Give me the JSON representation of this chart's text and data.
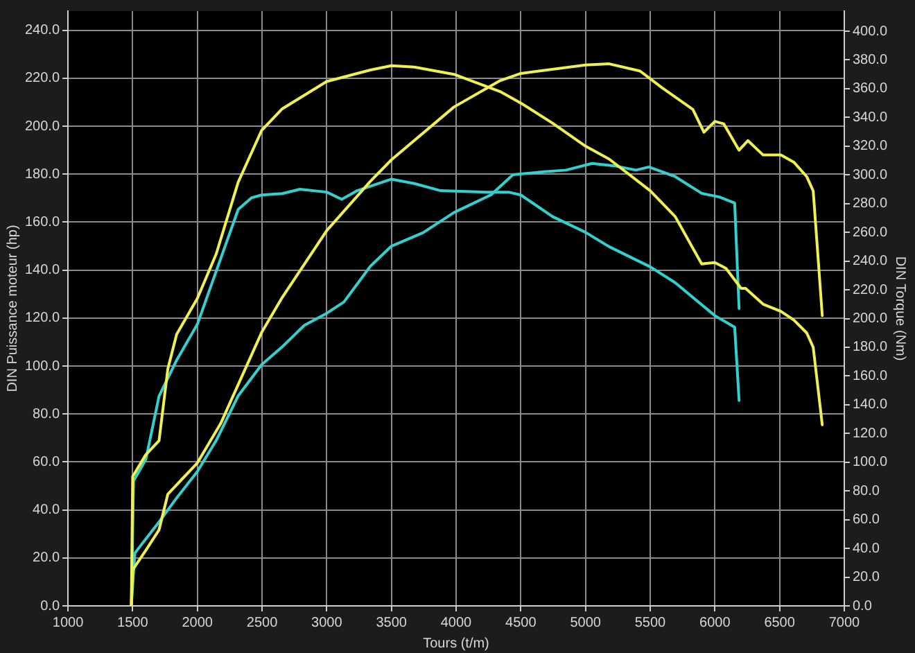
{
  "chart_data": {
    "type": "line",
    "xlabel": "Tours (t/m)",
    "ylabel": "DIN Puissance moteur (hp)",
    "y2label": "DIN Torque (Nm)",
    "xlim": [
      1000,
      7000
    ],
    "xticks": [
      1000,
      1500,
      2000,
      2500,
      3000,
      3500,
      4000,
      4500,
      5000,
      5500,
      6000,
      6500,
      7000
    ],
    "ylim": [
      0,
      248
    ],
    "yticks": [
      {
        "value": 0,
        "label": "0.0"
      },
      {
        "value": 20,
        "label": "20.0"
      },
      {
        "value": 40,
        "label": "40.0"
      },
      {
        "value": 60,
        "label": "60.0"
      },
      {
        "value": 80,
        "label": "80.0"
      },
      {
        "value": 100,
        "label": "100.0"
      },
      {
        "value": 120,
        "label": "120.0"
      },
      {
        "value": 140,
        "label": "140.0"
      },
      {
        "value": 160,
        "label": "160.0"
      },
      {
        "value": 180,
        "label": "180.0"
      },
      {
        "value": 200,
        "label": "200.0"
      },
      {
        "value": 220,
        "label": "220.0"
      },
      {
        "value": 240,
        "label": "240.0"
      }
    ],
    "y2lim": [
      0,
      414
    ],
    "y2ticks": [
      {
        "value": 0,
        "label": "0.0"
      },
      {
        "value": 20,
        "label": "20.0"
      },
      {
        "value": 40,
        "label": "40.0"
      },
      {
        "value": 60,
        "label": "60.0"
      },
      {
        "value": 80,
        "label": "80.0"
      },
      {
        "value": 100,
        "label": "100.0"
      },
      {
        "value": 120,
        "label": "120.0"
      },
      {
        "value": 140,
        "label": "140.0"
      },
      {
        "value": 160,
        "label": "160.0"
      },
      {
        "value": 180,
        "label": "180.0"
      },
      {
        "value": 200,
        "label": "200.0"
      },
      {
        "value": 220,
        "label": "220.0"
      },
      {
        "value": 240,
        "label": "240.0"
      },
      {
        "value": 260,
        "label": "260.0"
      },
      {
        "value": 280,
        "label": "280.0"
      },
      {
        "value": 300,
        "label": "300.0"
      },
      {
        "value": 320,
        "label": "320.0"
      },
      {
        "value": 340,
        "label": "340.0"
      },
      {
        "value": 360,
        "label": "360.0"
      },
      {
        "value": 380,
        "label": "380.0"
      },
      {
        "value": 400,
        "label": "400.0"
      }
    ],
    "grid": true,
    "legend": false,
    "marker": "none",
    "line_style": "solid",
    "series": [
      {
        "color": "#f0f050",
        "axis": "y2",
        "x": [
          1490,
          1500,
          1600,
          1704,
          1772,
          1840,
          2000,
          2146,
          2316,
          2497,
          2656,
          3000,
          3337,
          3500,
          3677,
          3983,
          4340,
          4500,
          4745,
          5000,
          5183,
          5500,
          5693,
          5898,
          6000,
          6085,
          6203,
          6237,
          6373,
          6510,
          6610,
          6710,
          6760,
          6830
        ],
        "values": [
          0,
          90,
          105,
          115,
          165,
          189,
          214,
          245,
          295,
          331,
          346,
          365,
          373,
          376,
          375,
          370,
          358,
          350,
          336,
          320,
          311,
          289,
          271,
          238,
          239,
          235,
          221,
          221,
          210,
          205,
          199,
          190,
          180,
          126
        ]
      },
      {
        "color": "#f0f050",
        "axis": "y",
        "x": [
          1490,
          1500,
          1600,
          1704,
          1772,
          2000,
          2180,
          2497,
          2656,
          3000,
          3337,
          3500,
          3983,
          4340,
          4500,
          5000,
          5183,
          5422,
          5592,
          5830,
          5915,
          6000,
          6068,
          6187,
          6255,
          6373,
          6510,
          6610,
          6710,
          6760,
          6830
        ],
        "values": [
          0,
          15,
          23,
          31.7,
          46.6,
          59.6,
          76,
          114,
          128.6,
          156.5,
          177,
          186,
          208,
          219,
          222,
          225.5,
          226,
          223,
          216,
          207,
          197.5,
          202,
          201,
          190,
          194,
          188,
          188,
          185,
          179,
          173,
          121
        ]
      },
      {
        "color": "#33d0d0",
        "axis": "y2",
        "x": [
          1490,
          1507,
          1602,
          1704,
          1840,
          2000,
          2146,
          2316,
          2418,
          2497,
          2656,
          2793,
          3000,
          3116,
          3235,
          3500,
          3677,
          3881,
          4237,
          4405,
          4500,
          4745,
          5000,
          5183,
          5500,
          5693,
          6000,
          6153,
          6187
        ],
        "values": [
          0,
          87,
          102,
          146,
          171,
          196,
          233,
          276,
          284,
          286,
          287,
          290,
          288,
          283,
          289,
          297,
          294,
          289,
          288,
          288,
          286,
          271,
          260,
          250,
          236,
          225,
          202,
          194,
          143
        ]
      },
      {
        "color": "#33d0d0",
        "axis": "y",
        "x": [
          1490,
          1517,
          1704,
          1840,
          2000,
          2146,
          2316,
          2497,
          2656,
          2827,
          3000,
          3133,
          3337,
          3500,
          3745,
          3983,
          4270,
          4440,
          4677,
          4850,
          5050,
          5220,
          5390,
          5490,
          5693,
          5898,
          6034,
          6153,
          6187
        ],
        "values": [
          0,
          22,
          35,
          45,
          56,
          69,
          87.6,
          100.6,
          108,
          117,
          122,
          126.7,
          141.6,
          150,
          155.6,
          164,
          171.4,
          179.8,
          181,
          181.7,
          184.5,
          183.5,
          181.7,
          183,
          179,
          172,
          170.5,
          168,
          124
        ]
      }
    ]
  }
}
